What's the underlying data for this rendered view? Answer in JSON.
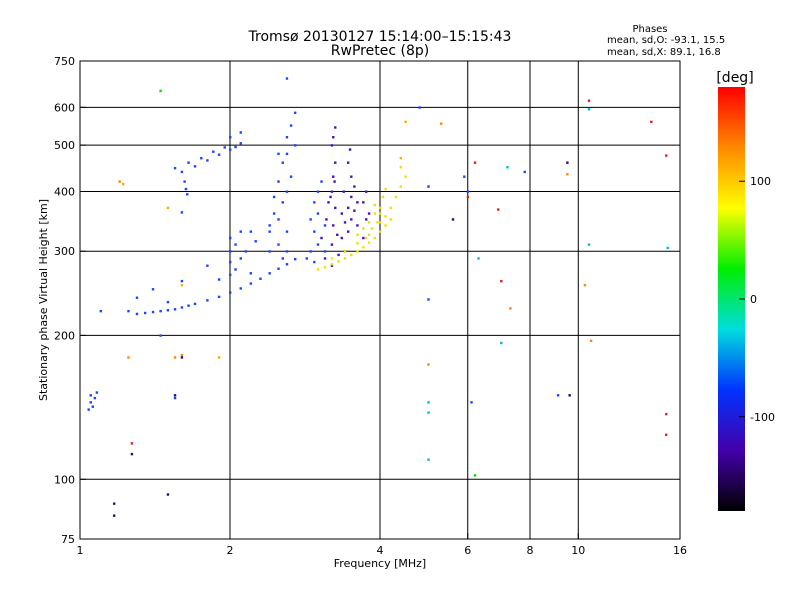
{
  "chart_data": {
    "type": "scatter",
    "title": "Tromsø 20130127  15:14:00–15:15:43",
    "subtitle": "RwPretec (8p)",
    "xlabel": "Frequency [MHz]",
    "ylabel": "Stationary phase Virtual Height [km]",
    "x_scale": "log",
    "y_scale": "log",
    "xlim": [
      1,
      16
    ],
    "ylim": [
      75,
      750
    ],
    "x_ticks": [
      1,
      2,
      4,
      6,
      8,
      10,
      16
    ],
    "y_ticks": [
      75,
      100,
      200,
      300,
      400,
      500,
      600,
      750
    ],
    "x_grid": [
      2,
      4,
      6,
      8,
      10
    ],
    "y_grid": [
      100,
      200,
      300,
      400,
      500,
      600
    ],
    "grid": true,
    "stats": {
      "heading": "Phases",
      "line_o": "mean, sd,O: -93.1, 15.5",
      "line_x": "mean, sd,X:  89.1, 16.8"
    },
    "colorbar": {
      "label": "[deg]",
      "range": [
        -180,
        180
      ],
      "ticks": [
        100,
        0,
        -100
      ],
      "colors": [
        "#ff0000",
        "#ff8800",
        "#ffff00",
        "#00ee00",
        "#00dddd",
        "#0033ff",
        "#4400aa",
        "#000000"
      ]
    },
    "series": [
      {
        "color": "#1a44ff",
        "points": [
          [
            1.3,
            222
          ],
          [
            1.35,
            223
          ],
          [
            1.4,
            224
          ],
          [
            1.45,
            225
          ],
          [
            1.5,
            226
          ],
          [
            1.55,
            227
          ],
          [
            1.6,
            229
          ],
          [
            1.65,
            231
          ],
          [
            1.7,
            233
          ],
          [
            1.8,
            237
          ],
          [
            1.9,
            241
          ],
          [
            2.0,
            246
          ],
          [
            2.1,
            251
          ],
          [
            2.2,
            257
          ],
          [
            2.3,
            263
          ],
          [
            2.4,
            270
          ],
          [
            2.5,
            276
          ],
          [
            2.6,
            282
          ],
          [
            2.7,
            289
          ],
          [
            1.6,
            440
          ],
          [
            1.7,
            452
          ],
          [
            1.8,
            465
          ],
          [
            1.9,
            478
          ],
          [
            2.0,
            490
          ],
          [
            2.05,
            496
          ],
          [
            2.1,
            505
          ],
          [
            1.55,
            448
          ],
          [
            1.65,
            460
          ],
          [
            1.75,
            470
          ],
          [
            1.85,
            485
          ],
          [
            1.95,
            495
          ],
          [
            2.0,
            520
          ],
          [
            2.1,
            532
          ],
          [
            1.62,
            420
          ],
          [
            1.63,
            405
          ],
          [
            1.64,
            395
          ],
          [
            1.6,
            362
          ],
          [
            2.0,
            268
          ],
          [
            2.0,
            285
          ],
          [
            2.0,
            300
          ],
          [
            2.0,
            320
          ],
          [
            2.05,
            275
          ],
          [
            2.05,
            310
          ],
          [
            2.1,
            290
          ],
          [
            2.1,
            330
          ],
          [
            1.9,
            262
          ],
          [
            1.8,
            280
          ],
          [
            2.15,
            300
          ],
          [
            2.2,
            330
          ],
          [
            2.2,
            270
          ],
          [
            2.25,
            315
          ],
          [
            2.4,
            300
          ],
          [
            2.4,
            330
          ],
          [
            2.45,
            360
          ],
          [
            2.45,
            390
          ],
          [
            2.5,
            420
          ],
          [
            2.5,
            350
          ],
          [
            2.55,
            460
          ],
          [
            2.5,
            480
          ],
          [
            2.55,
            380
          ],
          [
            2.6,
            330
          ],
          [
            2.6,
            300
          ],
          [
            2.4,
            340
          ],
          [
            2.5,
            310
          ],
          [
            2.55,
            290
          ],
          [
            2.6,
            480
          ],
          [
            2.6,
            520
          ],
          [
            2.65,
            550
          ],
          [
            2.7,
            585
          ],
          [
            2.7,
            500
          ],
          [
            2.65,
            430
          ],
          [
            2.6,
            400
          ],
          [
            2.9,
            300
          ],
          [
            2.95,
            330
          ],
          [
            3.0,
            360
          ],
          [
            3.0,
            400
          ],
          [
            2.95,
            380
          ],
          [
            2.9,
            350
          ],
          [
            3.05,
            420
          ],
          [
            2.85,
            290
          ],
          [
            2.95,
            285
          ],
          [
            3.0,
            310
          ],
          [
            3.1,
            300
          ],
          [
            3.1,
            340
          ],
          [
            1.05,
            150
          ],
          [
            1.05,
            145
          ],
          [
            1.07,
            148
          ],
          [
            1.08,
            152
          ],
          [
            1.04,
            140
          ],
          [
            1.06,
            142
          ],
          [
            1.4,
            250
          ],
          [
            1.3,
            240
          ],
          [
            1.5,
            235
          ],
          [
            1.6,
            260
          ]
        ]
      },
      {
        "color": "#4a10c0",
        "points": [
          [
            3.2,
            280
          ],
          [
            3.2,
            310
          ],
          [
            3.22,
            340
          ],
          [
            3.25,
            370
          ],
          [
            3.2,
            400
          ],
          [
            3.22,
            430
          ],
          [
            3.25,
            460
          ],
          [
            3.2,
            500
          ],
          [
            3.22,
            520
          ],
          [
            3.25,
            545
          ],
          [
            3.18,
            390
          ],
          [
            3.24,
            420
          ],
          [
            3.1,
            290
          ],
          [
            3.05,
            320
          ],
          [
            3.12,
            350
          ],
          [
            3.15,
            380
          ],
          [
            3.4,
            300
          ],
          [
            3.45,
            330
          ],
          [
            3.5,
            350
          ],
          [
            3.45,
            370
          ],
          [
            3.5,
            390
          ],
          [
            3.55,
            410
          ],
          [
            3.5,
            430
          ],
          [
            3.45,
            460
          ],
          [
            3.48,
            490
          ],
          [
            3.35,
            320
          ],
          [
            3.4,
            345
          ],
          [
            3.55,
            365
          ],
          [
            3.6,
            340
          ],
          [
            3.6,
            380
          ],
          [
            3.3,
            295
          ],
          [
            3.28,
            325
          ],
          [
            3.35,
            360
          ],
          [
            3.38,
            400
          ],
          [
            3.7,
            320
          ],
          [
            3.75,
            350
          ],
          [
            3.7,
            380
          ],
          [
            3.75,
            400
          ],
          [
            3.8,
            360
          ]
        ]
      },
      {
        "color": "#f0e000",
        "points": [
          [
            3.0,
            275
          ],
          [
            3.1,
            278
          ],
          [
            3.2,
            282
          ],
          [
            3.3,
            286
          ],
          [
            3.4,
            290
          ],
          [
            3.5,
            295
          ],
          [
            3.6,
            300
          ],
          [
            3.7,
            306
          ],
          [
            3.8,
            313
          ],
          [
            3.9,
            320
          ],
          [
            4.0,
            330
          ],
          [
            4.1,
            340
          ],
          [
            4.2,
            350
          ],
          [
            3.2,
            290
          ],
          [
            3.4,
            300
          ],
          [
            3.6,
            312
          ],
          [
            3.8,
            325
          ],
          [
            4.0,
            345
          ],
          [
            4.1,
            355
          ],
          [
            3.6,
            325
          ],
          [
            3.7,
            335
          ],
          [
            3.8,
            345
          ],
          [
            3.9,
            360
          ],
          [
            4.0,
            370
          ],
          [
            3.75,
            320
          ],
          [
            3.85,
            335
          ],
          [
            4.2,
            370
          ],
          [
            4.3,
            390
          ],
          [
            4.4,
            410
          ],
          [
            4.5,
            430
          ],
          [
            4.4,
            450
          ],
          [
            4.0,
            360
          ],
          [
            4.05,
            390
          ],
          [
            4.1,
            405
          ],
          [
            3.9,
            375
          ],
          [
            3.95,
            345
          ]
        ]
      },
      {
        "color": "#ffaa00",
        "points": [
          [
            1.22,
            415
          ],
          [
            1.9,
            180
          ],
          [
            4.5,
            560
          ],
          [
            4.4,
            470
          ],
          [
            1.6,
            255
          ],
          [
            1.5,
            370
          ]
        ]
      },
      {
        "color": "#1a44ff",
        "points": [
          [
            5.0,
            410
          ],
          [
            5.0,
            238
          ],
          [
            6.1,
            145
          ],
          [
            5.9,
            430
          ],
          [
            6.0,
            400
          ],
          [
            7.8,
            440
          ],
          [
            9.1,
            150
          ],
          [
            1.25,
            225
          ],
          [
            1.1,
            225
          ],
          [
            1.55,
            148
          ],
          [
            1.45,
            200
          ],
          [
            4.8,
            600
          ],
          [
            2.6,
            690
          ]
        ]
      },
      {
        "color": "#00bbcc",
        "points": [
          [
            5.0,
            145
          ],
          [
            5.0,
            138
          ],
          [
            5.0,
            110
          ],
          [
            6.3,
            290
          ],
          [
            7.0,
            193
          ],
          [
            7.2,
            450
          ],
          [
            10.5,
            595
          ],
          [
            10.5,
            310
          ],
          [
            15.1,
            305
          ]
        ]
      },
      {
        "color": "#e02020",
        "points": [
          [
            1.27,
            119
          ],
          [
            6.2,
            460
          ],
          [
            7.0,
            260
          ],
          [
            10.5,
            620
          ],
          [
            15.0,
            476
          ],
          [
            15.0,
            124
          ],
          [
            15.0,
            137
          ],
          [
            14.0,
            560
          ],
          [
            6.9,
            367
          ],
          [
            6.0,
            390
          ]
        ]
      },
      {
        "color": "#ff8800",
        "points": [
          [
            5.3,
            555
          ],
          [
            5.0,
            174
          ],
          [
            9.5,
            435
          ],
          [
            10.6,
            195
          ],
          [
            10.3,
            255
          ],
          [
            7.3,
            228
          ],
          [
            1.25,
            180
          ],
          [
            1.55,
            180
          ],
          [
            1.2,
            420
          ],
          [
            1.6,
            182
          ]
        ]
      },
      {
        "color": "#00dd00",
        "points": [
          [
            1.45,
            650
          ],
          [
            6.2,
            102
          ]
        ]
      },
      {
        "color": "#2a0a80",
        "points": [
          [
            1.17,
            84
          ],
          [
            1.17,
            89
          ],
          [
            1.27,
            113
          ],
          [
            1.5,
            93
          ],
          [
            1.55,
            150
          ],
          [
            1.6,
            180
          ],
          [
            5.6,
            350
          ],
          [
            9.5,
            460
          ],
          [
            9.6,
            150
          ]
        ]
      }
    ]
  }
}
